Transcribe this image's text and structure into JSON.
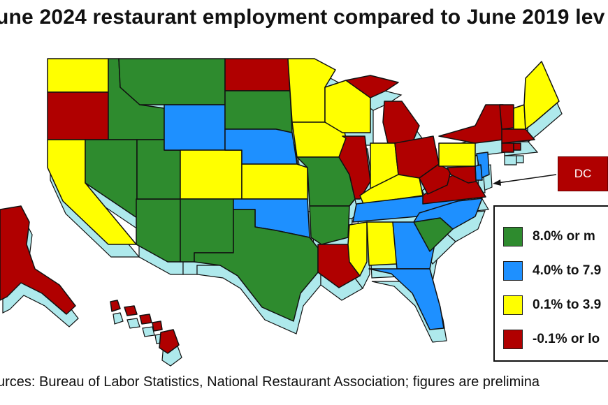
{
  "title": "une 2024 restaurant employment compared to June 2019 lev",
  "source": "urces: Bureau of Labor Statistics, National Restaurant Association; figures are prelimina",
  "dc_label": "DC",
  "colors": {
    "green": "#2e8b2e",
    "blue": "#1e90ff",
    "yellow": "#ffff00",
    "red": "#b00000",
    "extrude": "#aee9ec",
    "border": "#111111"
  },
  "legend": [
    {
      "label": "8.0% or m",
      "color": "#2e8b2e"
    },
    {
      "label": "4.0% to 7.9",
      "color": "#1e90ff"
    },
    {
      "label": "0.1% to 3.9",
      "color": "#ffff00"
    },
    {
      "label": "-0.1% or lo",
      "color": "#b00000"
    }
  ],
  "states": [
    {
      "id": "WA",
      "cat": "yellow"
    },
    {
      "id": "OR",
      "cat": "red"
    },
    {
      "id": "CA",
      "cat": "yellow"
    },
    {
      "id": "ID",
      "cat": "green"
    },
    {
      "id": "NV",
      "cat": "green"
    },
    {
      "id": "AZ",
      "cat": "green"
    },
    {
      "id": "UT",
      "cat": "green"
    },
    {
      "id": "MT",
      "cat": "green"
    },
    {
      "id": "WY",
      "cat": "blue"
    },
    {
      "id": "CO",
      "cat": "yellow"
    },
    {
      "id": "NM",
      "cat": "green"
    },
    {
      "id": "ND",
      "cat": "red"
    },
    {
      "id": "SD",
      "cat": "green"
    },
    {
      "id": "NE",
      "cat": "blue"
    },
    {
      "id": "KS",
      "cat": "yellow"
    },
    {
      "id": "OK",
      "cat": "blue"
    },
    {
      "id": "TX",
      "cat": "green"
    },
    {
      "id": "MN",
      "cat": "yellow"
    },
    {
      "id": "IA",
      "cat": "yellow"
    },
    {
      "id": "MO",
      "cat": "green"
    },
    {
      "id": "AR",
      "cat": "green"
    },
    {
      "id": "LA",
      "cat": "red"
    },
    {
      "id": "WI",
      "cat": "yellow"
    },
    {
      "id": "IL",
      "cat": "red"
    },
    {
      "id": "MI",
      "cat": "red"
    },
    {
      "id": "MI-UP",
      "cat": "red"
    },
    {
      "id": "IN",
      "cat": "yellow"
    },
    {
      "id": "OH",
      "cat": "red"
    },
    {
      "id": "KY",
      "cat": "yellow"
    },
    {
      "id": "TN",
      "cat": "blue"
    },
    {
      "id": "MS",
      "cat": "yellow"
    },
    {
      "id": "AL",
      "cat": "yellow"
    },
    {
      "id": "GA",
      "cat": "blue"
    },
    {
      "id": "FL",
      "cat": "blue"
    },
    {
      "id": "SC",
      "cat": "green"
    },
    {
      "id": "NC",
      "cat": "blue"
    },
    {
      "id": "VA",
      "cat": "red"
    },
    {
      "id": "WV",
      "cat": "red"
    },
    {
      "id": "PA",
      "cat": "yellow"
    },
    {
      "id": "NY",
      "cat": "red"
    },
    {
      "id": "NJ",
      "cat": "blue"
    },
    {
      "id": "DE",
      "cat": "blue"
    },
    {
      "id": "MD",
      "cat": "red"
    },
    {
      "id": "VT",
      "cat": "red"
    },
    {
      "id": "NH",
      "cat": "yellow"
    },
    {
      "id": "ME",
      "cat": "yellow"
    },
    {
      "id": "MA",
      "cat": "red"
    },
    {
      "id": "CT",
      "cat": "red"
    },
    {
      "id": "RI",
      "cat": "red"
    },
    {
      "id": "AK",
      "cat": "red"
    },
    {
      "id": "HI",
      "cat": "red"
    }
  ]
}
